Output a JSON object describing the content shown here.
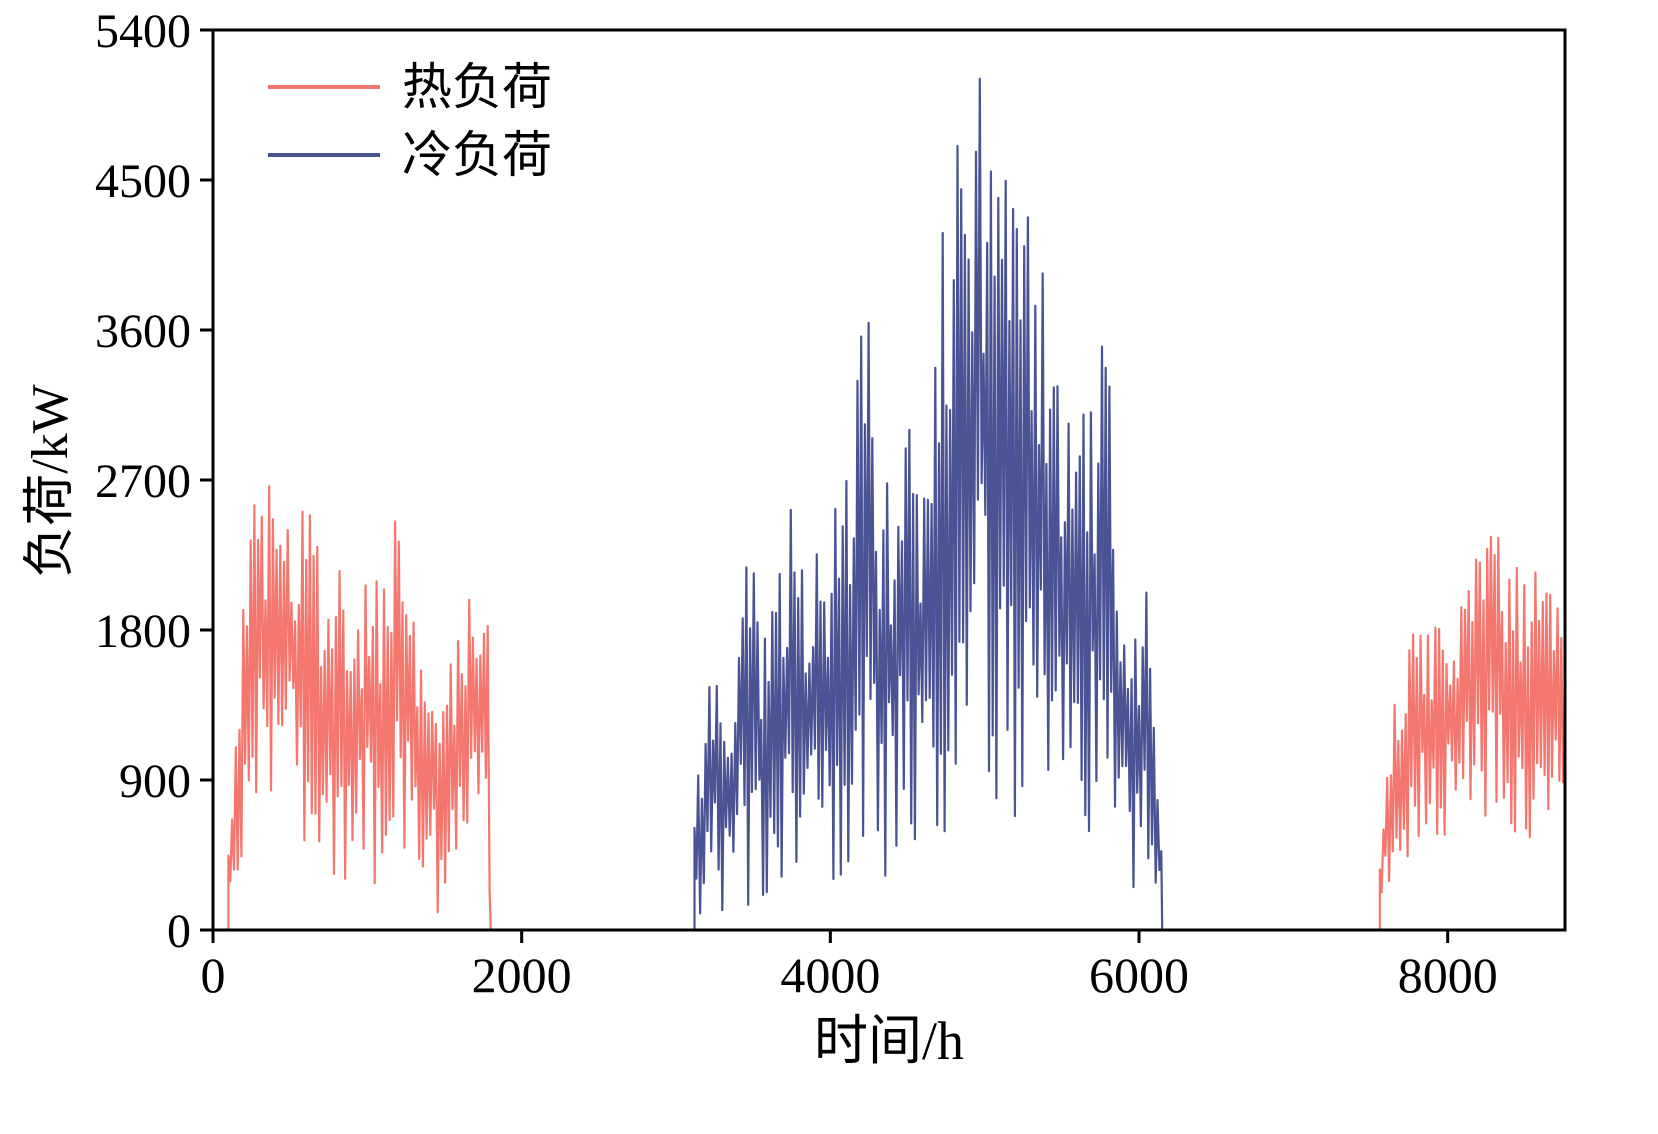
{
  "figure": {
    "background": "#ffffff",
    "frame_color": "#000000"
  },
  "chart_data": {
    "type": "line",
    "title": "",
    "xlabel": "时间/h",
    "ylabel": "负荷/kW",
    "xlim": [
      0,
      8760
    ],
    "ylim": [
      0,
      5400
    ],
    "xticks": [
      0,
      2000,
      4000,
      6000,
      8000
    ],
    "yticks": [
      0,
      900,
      1800,
      2700,
      3600,
      4500,
      5400
    ],
    "grid": false,
    "legend": {
      "position": "top-left",
      "entries": [
        {
          "label": "热负荷",
          "color": "#f4776f"
        },
        {
          "label": "冷负荷",
          "color": "#4a5494"
        }
      ]
    },
    "sample_step_hours": 12,
    "noise_seed": 7,
    "series": [
      {
        "name": "冷负荷",
        "color": "#4a5494",
        "zero_segments": [
          [
            0,
            3120
          ],
          [
            6150,
            8760
          ]
        ],
        "envelope_segments": [
          {
            "start_at_zero": true,
            "end_at_zero": true,
            "points": [
              [
                3120,
                20,
                800
              ],
              [
                3200,
                60,
                1400
              ],
              [
                3280,
                100,
                2050
              ],
              [
                3360,
                100,
                1400
              ],
              [
                3450,
                150,
                2550
              ],
              [
                3550,
                120,
                1900
              ],
              [
                3650,
                150,
                2100
              ],
              [
                3750,
                200,
                2550
              ],
              [
                3850,
                200,
                2300
              ],
              [
                3950,
                250,
                2450
              ],
              [
                4050,
                300,
                2700
              ],
              [
                4150,
                350,
                2950
              ],
              [
                4220,
                350,
                4200
              ],
              [
                4300,
                350,
                3000
              ],
              [
                4400,
                300,
                2600
              ],
              [
                4500,
                400,
                3450
              ],
              [
                4600,
                350,
                2750
              ],
              [
                4700,
                500,
                4300
              ],
              [
                4800,
                600,
                4650
              ],
              [
                4900,
                700,
                4950
              ],
              [
                5000,
                800,
                5200
              ],
              [
                5080,
                750,
                4850
              ],
              [
                5180,
                650,
                4400
              ],
              [
                5280,
                700,
                4300
              ],
              [
                5380,
                600,
                3950
              ],
              [
                5480,
                550,
                3400
              ],
              [
                5580,
                450,
                2850
              ],
              [
                5680,
                350,
                3300
              ],
              [
                5780,
                300,
                3800
              ],
              [
                5880,
                250,
                2300
              ],
              [
                5980,
                150,
                1800
              ],
              [
                6060,
                120,
                2350
              ],
              [
                6150,
                0,
                400
              ]
            ]
          }
        ]
      },
      {
        "name": "热负荷",
        "color": "#f4776f",
        "zero_segments": [
          [
            0,
            100
          ],
          [
            1800,
            7560
          ]
        ],
        "envelope_segments": [
          {
            "start_at_zero": true,
            "end_at_zero": true,
            "points": [
              [
                100,
                120,
                600
              ],
              [
                160,
                200,
                1500
              ],
              [
                220,
                400,
                2450
              ],
              [
                300,
                700,
                2650
              ],
              [
                400,
                800,
                2700
              ],
              [
                500,
                700,
                2600
              ],
              [
                600,
                500,
                2550
              ],
              [
                700,
                300,
                2400
              ],
              [
                800,
                250,
                2300
              ],
              [
                900,
                250,
                1850
              ],
              [
                1000,
                300,
                2100
              ],
              [
                1080,
                150,
                2200
              ],
              [
                1150,
                250,
                2500
              ],
              [
                1250,
                300,
                2550
              ],
              [
                1350,
                200,
                1900
              ],
              [
                1420,
                60,
                1750
              ],
              [
                1500,
                120,
                1500
              ],
              [
                1580,
                300,
                1900
              ],
              [
                1650,
                600,
                2000
              ],
              [
                1720,
                700,
                2050
              ],
              [
                1780,
                300,
                1950
              ],
              [
                1800,
                0,
                600
              ]
            ]
          },
          {
            "start_at_zero": true,
            "end_at_zero": false,
            "points": [
              [
                7560,
                80,
                500
              ],
              [
                7620,
                250,
                1100
              ],
              [
                7700,
                350,
                1700
              ],
              [
                7800,
                450,
                1800
              ],
              [
                7900,
                550,
                1850
              ],
              [
                8000,
                500,
                1950
              ],
              [
                8100,
                550,
                2050
              ],
              [
                8200,
                650,
                2300
              ],
              [
                8300,
                650,
                2400
              ],
              [
                8400,
                550,
                2250
              ],
              [
                8500,
                550,
                2300
              ],
              [
                8600,
                500,
                2200
              ],
              [
                8700,
                550,
                2050
              ],
              [
                8760,
                600,
                1900
              ]
            ]
          }
        ]
      }
    ]
  }
}
